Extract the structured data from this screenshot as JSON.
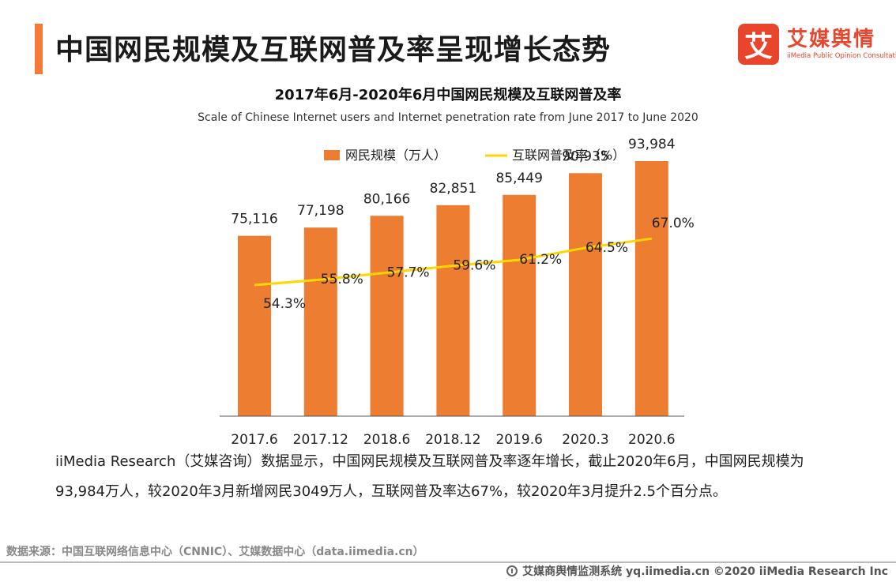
{
  "header": {
    "title": "中国网民规模及互联网普及率呈现增长态势",
    "logo_mark": "艾",
    "logo_cn": "艾媒舆情",
    "logo_en": "iiMedia Public Opinion Consultation"
  },
  "chart_data": {
    "type": "bar",
    "title": "2017年6月-2020年6月中国网民规模及互联网普及率",
    "subtitle": "Scale of Chinese Internet users and Internet penetration rate from June 2017 to June 2020",
    "categories": [
      "2017.6",
      "2017.12",
      "2018.6",
      "2018.12",
      "2019.6",
      "2020.3",
      "2020.6"
    ],
    "series": [
      {
        "name": "网民规模（万人）",
        "type": "bar",
        "values": [
          75116,
          77198,
          80166,
          82851,
          85449,
          90935,
          93984
        ],
        "labels": [
          "75,116",
          "77,198",
          "80,166",
          "82,851",
          "85,449",
          "90,935",
          "93,984"
        ],
        "color": "#ed7d31"
      },
      {
        "name": "互联网普及率（%）",
        "type": "line",
        "values": [
          54.3,
          55.8,
          57.7,
          59.6,
          61.2,
          64.5,
          67.0
        ],
        "labels": [
          "54.3%",
          "55.8%",
          "57.7%",
          "59.6%",
          "61.2%",
          "64.5%",
          "67.0%"
        ],
        "color": "#ffd700"
      }
    ],
    "y_left_range": [
      0,
      100000
    ],
    "y_right_range": [
      0,
      100
    ],
    "legend_position": "top-center",
    "grid": false
  },
  "description": "iiMedia Research（艾媒咨询）数据显示，中国网民规模及互联网普及率逐年增长，截止2020年6月，中国网民规模为93,984万人，较2020年3月新增网民3049万人，互联网普及率达67%，较2020年3月提升2.5个百分点。",
  "source": "数据来源：中国互联网络信息中心（CNNIC）、艾媒数据中心（data.iimedia.cn）",
  "footer": "艾媒商舆情监测系统 yq.iimedia.cn  ©2020  iiMedia Research  Inc"
}
